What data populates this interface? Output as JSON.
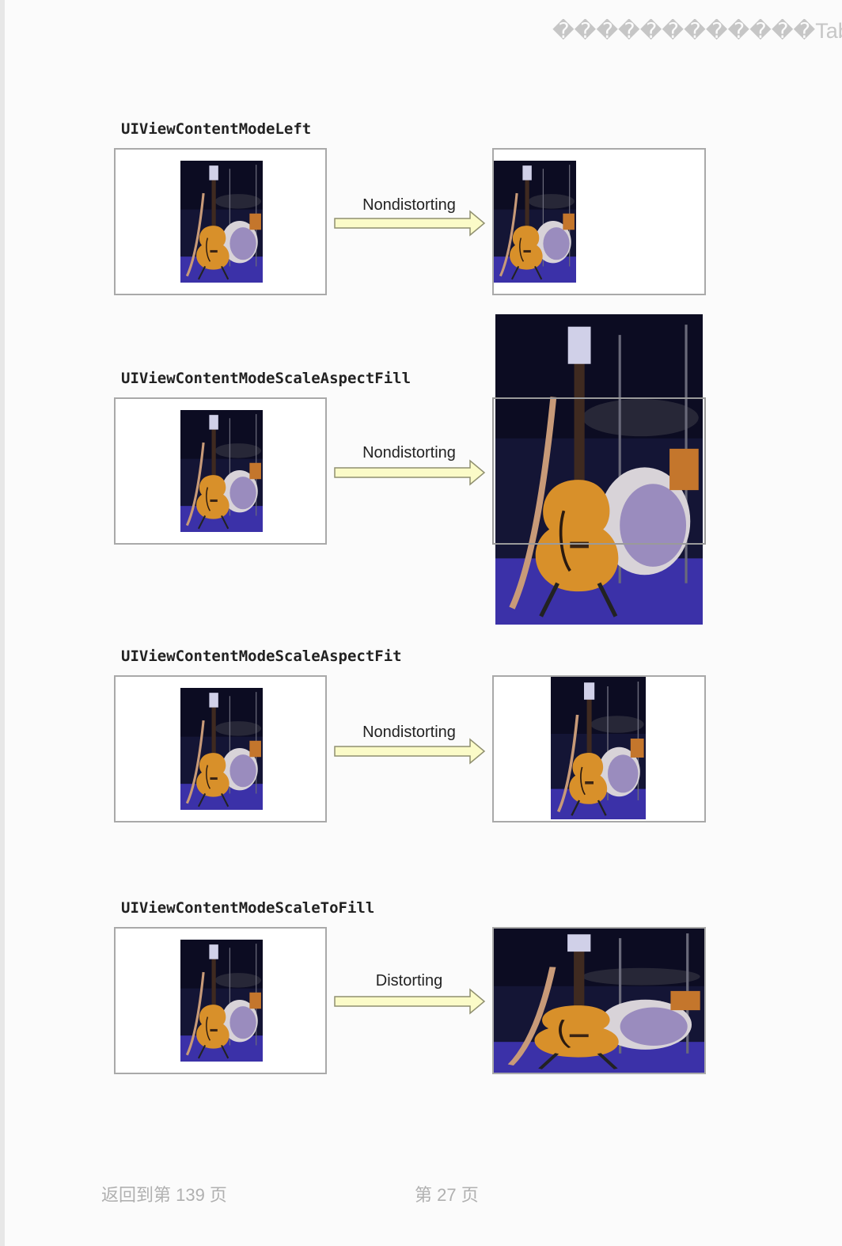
{
  "header": {
    "title": "������������TableVie"
  },
  "sections": [
    {
      "mode": "UIViewContentModeLeft",
      "arrow_label": "Nondistorting"
    },
    {
      "mode": "UIViewContentModeScaleAspectFill",
      "arrow_label": "Nondistorting"
    },
    {
      "mode": "UIViewContentModeScaleAspectFit",
      "arrow_label": "Nondistorting"
    },
    {
      "mode": "UIViewContentModeScaleToFill",
      "arrow_label": "Distorting"
    }
  ],
  "footer": {
    "back_link": "返回到第 139 页",
    "page_number": "第 27 页"
  },
  "colors": {
    "arrow_fill": "#fbfbc8",
    "arrow_stroke": "#909070",
    "box_border": "#a9a9a9",
    "footer_text": "#b0b0b0",
    "photo_background": "#141535",
    "stage_floor": "#3b31a8",
    "guitar": "#d8902a"
  }
}
